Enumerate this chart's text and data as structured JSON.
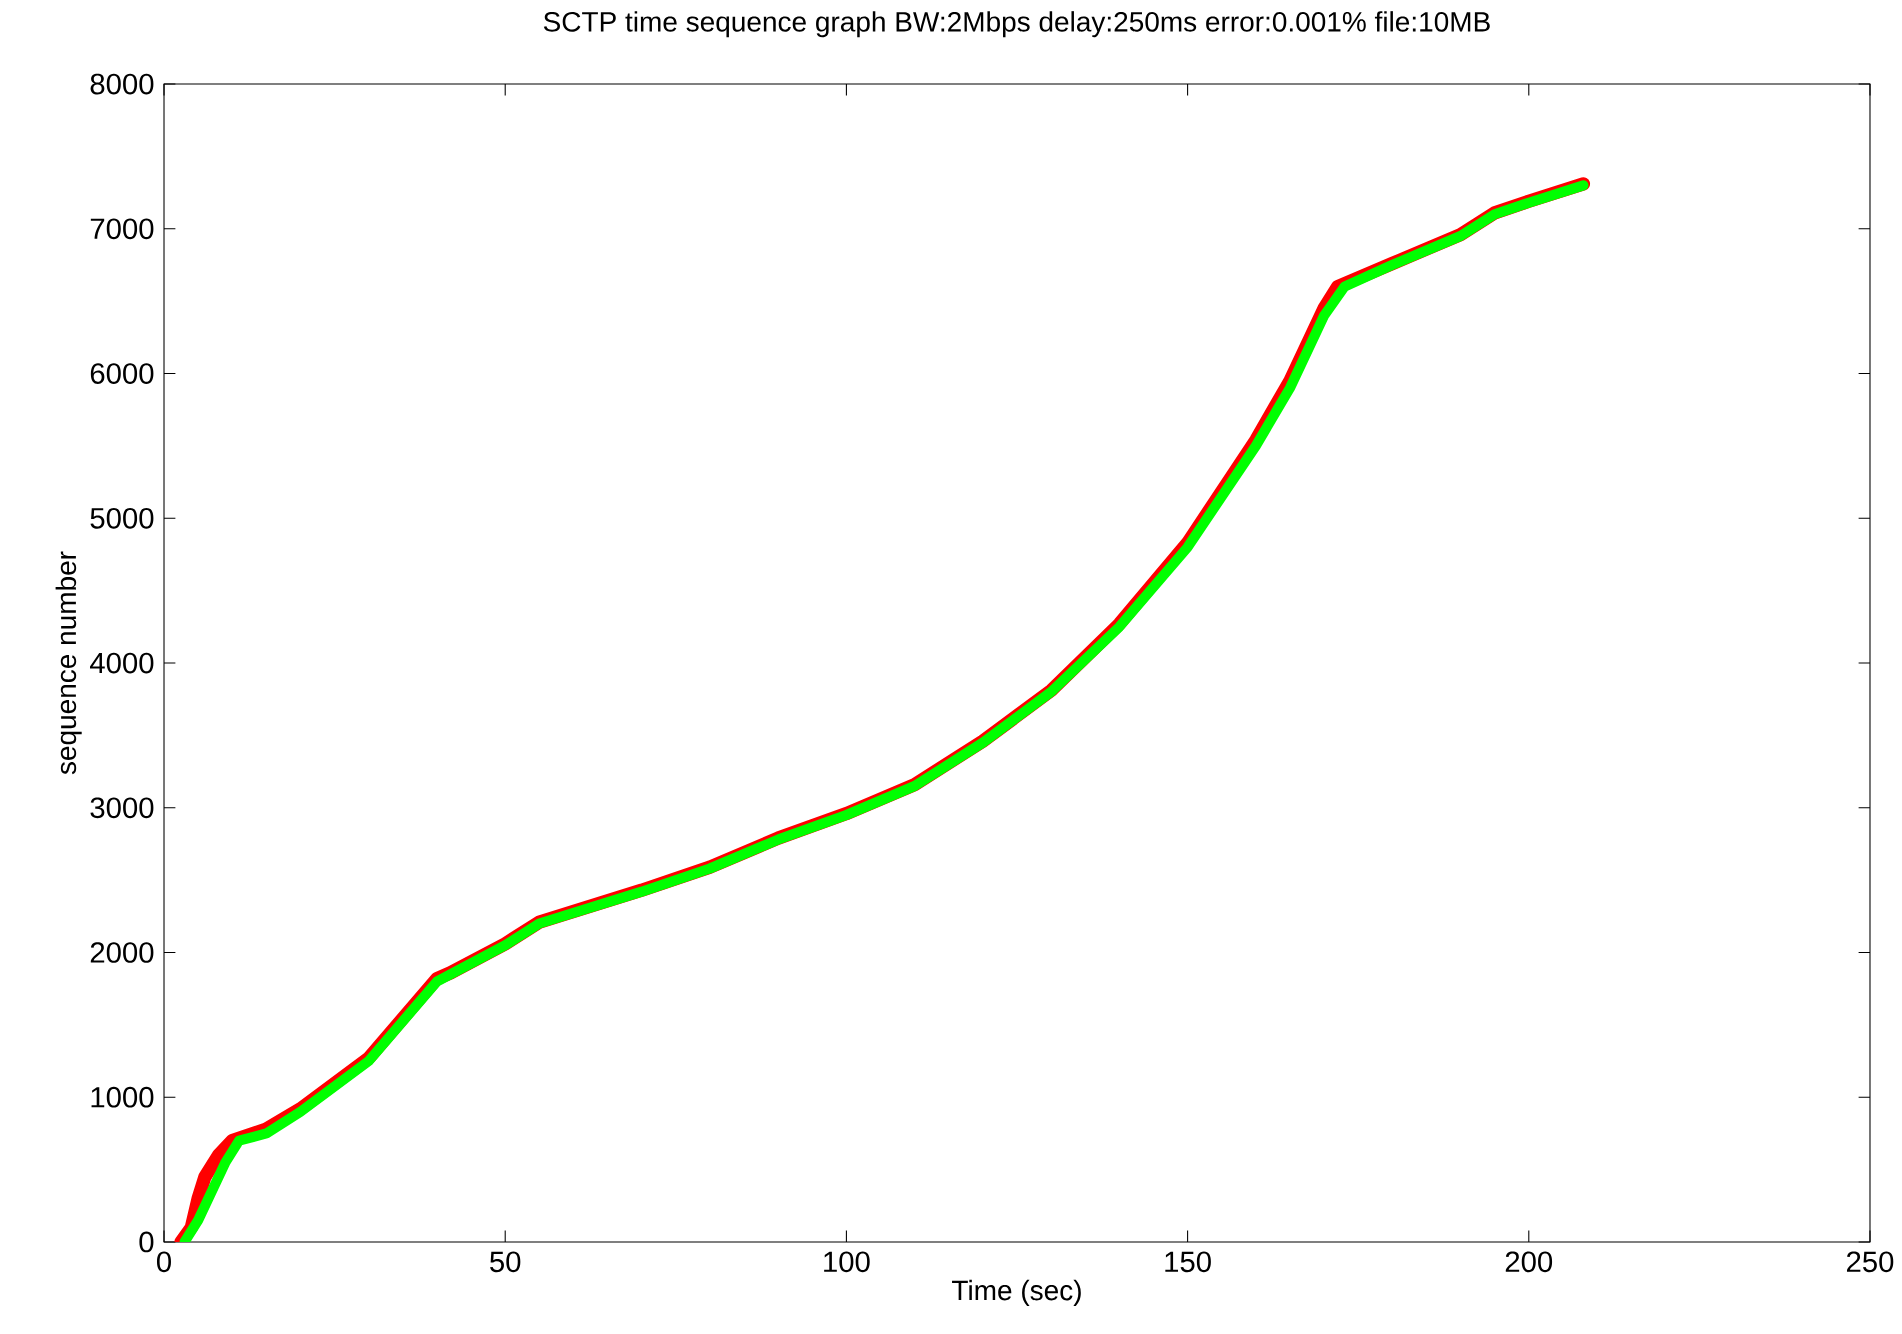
{
  "chart_data": {
    "type": "line",
    "title": "SCTP time sequence graph BW:2Mbps delay:250ms error:0.001% file:10MB",
    "xlabel": "Time (sec)",
    "ylabel": "sequence number",
    "xlim": [
      0,
      250
    ],
    "xticks": [
      0,
      50,
      100,
      150,
      200,
      250
    ],
    "ylim": [
      0,
      8000
    ],
    "yticks": [
      0,
      1000,
      2000,
      3000,
      4000,
      5000,
      6000,
      7000,
      8000
    ],
    "grid": false,
    "marker": "none",
    "line_style": "solid",
    "series": [
      {
        "color": "#ff0000",
        "x": [
          2.5,
          4,
          5,
          6,
          8,
          10,
          15,
          20,
          30,
          40,
          42,
          50,
          55,
          70,
          80,
          90,
          100,
          110,
          120,
          130,
          140,
          150,
          160,
          165,
          170,
          172,
          180,
          190,
          195,
          200,
          208
        ],
        "values": [
          0,
          100,
          300,
          450,
          600,
          700,
          780,
          920,
          1270,
          1820,
          1860,
          2060,
          2210,
          2430,
          2590,
          2790,
          2960,
          3160,
          3460,
          3810,
          4270,
          4830,
          5540,
          5950,
          6450,
          6600,
          6760,
          6960,
          7110,
          7190,
          7310
        ]
      },
      {
        "color": "#00ff00",
        "x": [
          3,
          5,
          7,
          9,
          11,
          15,
          20,
          30,
          40,
          42,
          50,
          55,
          70,
          80,
          90,
          100,
          110,
          120,
          130,
          140,
          150,
          160,
          165,
          170,
          173,
          180,
          190,
          195,
          200,
          208
        ],
        "values": [
          0,
          150,
          350,
          550,
          700,
          750,
          900,
          1250,
          1800,
          1850,
          2050,
          2200,
          2420,
          2580,
          2780,
          2950,
          3150,
          3450,
          3800,
          4250,
          4800,
          5500,
          5900,
          6400,
          6600,
          6750,
          6950,
          7100,
          7180,
          7300
        ]
      }
    ]
  }
}
